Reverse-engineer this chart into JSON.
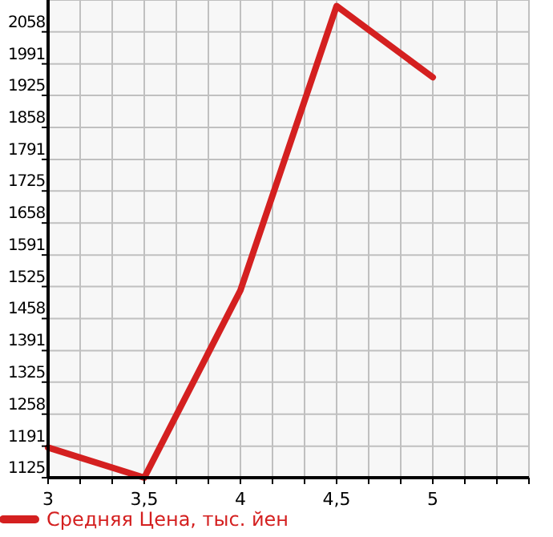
{
  "chart_data": {
    "type": "line",
    "x": [
      3,
      3.5,
      4,
      4.5,
      5
    ],
    "series": [
      {
        "name": "Средняя Цена, тыс. йен",
        "color": "#d42020",
        "values": [
          1188,
          1125,
          1517,
          2112,
          1963
        ]
      }
    ],
    "xlim": [
      3,
      5.5
    ],
    "xticks": [
      3,
      {
        "value": 3.1667,
        "label": null
      },
      {
        "value": 3.3333,
        "label": null
      },
      {
        "value": 3.5,
        "label": "3,5"
      },
      {
        "value": 3.6667,
        "label": null
      },
      {
        "value": 3.8333,
        "label": null
      },
      4,
      {
        "value": 4.1667,
        "label": null
      },
      {
        "value": 4.3333,
        "label": null
      },
      {
        "value": 4.5,
        "label": "4,5"
      },
      {
        "value": 4.6667,
        "label": null
      },
      {
        "value": 4.8333,
        "label": null
      },
      5,
      {
        "value": 5.1667,
        "label": null
      },
      {
        "value": 5.3333,
        "label": null
      },
      {
        "value": 5.5,
        "label": null
      }
    ],
    "ylim": [
      1125,
      2124.6
    ],
    "yticks": [
      1125,
      1191,
      1258,
      1325,
      1391,
      1458,
      1525,
      1591,
      1658,
      1725,
      1791,
      1858,
      1925,
      1991,
      2058
    ],
    "grid": true,
    "legend": "bottom left",
    "marker": "none",
    "line_style": "solid"
  }
}
